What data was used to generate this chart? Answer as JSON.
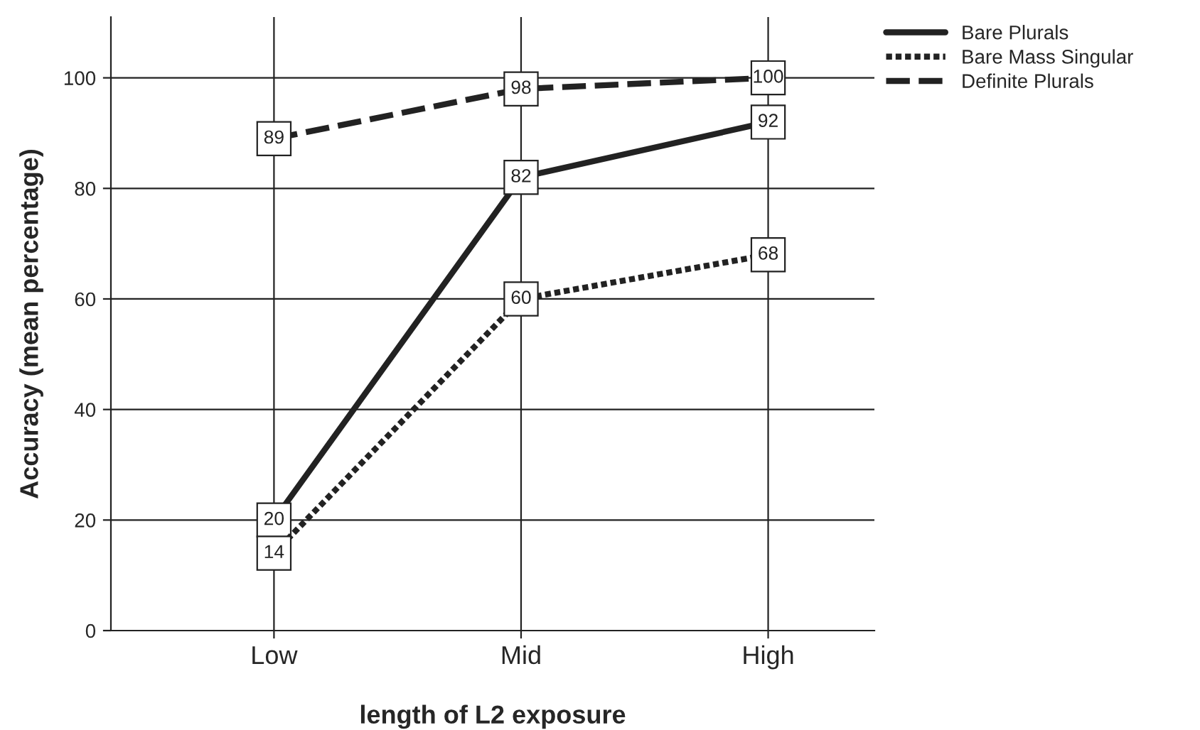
{
  "chart_data": {
    "type": "line",
    "xlabel": "length of L2 exposure",
    "ylabel": "Accuracy (mean percentage)",
    "categories": [
      "Low",
      "Mid",
      "High"
    ],
    "series": [
      {
        "name": "Bare Plurals",
        "color": "#222222",
        "line_style": "solid",
        "values": [
          20,
          82,
          92
        ]
      },
      {
        "name": "Bare Mass Singular",
        "color": "#222222",
        "line_style": "dotted",
        "values": [
          14,
          60,
          68
        ]
      },
      {
        "name": "Definite Plurals",
        "color": "#222222",
        "line_style": "dashed",
        "values": [
          89,
          98,
          100
        ]
      }
    ],
    "ylim": [
      0,
      111
    ],
    "yticks": [
      0,
      20,
      40,
      60,
      80,
      100
    ],
    "grid": true,
    "marker": "square",
    "legend": "top right",
    "data_labels": true
  }
}
